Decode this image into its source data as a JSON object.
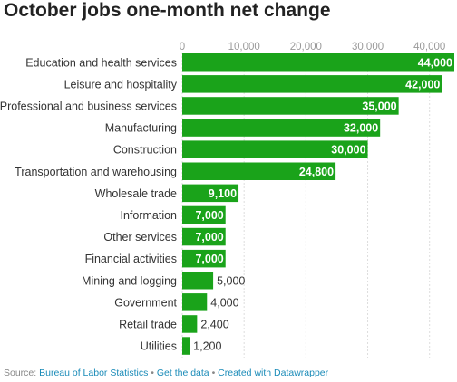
{
  "title": "October jobs one-month net change",
  "chart_data": {
    "type": "bar",
    "orientation": "horizontal",
    "categories": [
      "Education and health services",
      "Leisure and hospitality",
      "Professional and business services",
      "Manufacturing",
      "Construction",
      "Transportation and warehousing",
      "Wholesale trade",
      "Information",
      "Other services",
      "Financial activities",
      "Mining and logging",
      "Government",
      "Retail trade",
      "Utilities"
    ],
    "values": [
      44000,
      42000,
      35000,
      32000,
      30000,
      24800,
      9100,
      7000,
      7000,
      7000,
      5000,
      4000,
      2400,
      1200
    ],
    "value_labels": [
      "44,000",
      "42,000",
      "35,000",
      "32,000",
      "30,000",
      "24,800",
      "9,100",
      "7,000",
      "7,000",
      "7,000",
      "5,000",
      "4,000",
      "2,400",
      "1,200"
    ],
    "ticks": [
      0,
      10000,
      20000,
      30000,
      40000
    ],
    "tick_labels": [
      "0",
      "10,000",
      "20,000",
      "30,000",
      "40,000"
    ],
    "xlim": [
      0,
      44000
    ],
    "grid": true,
    "bar_color": "#1aa31a"
  },
  "footer": {
    "source_prefix": "Source: ",
    "source_link": "Bureau of Labor Statistics",
    "sep1": " • ",
    "data_link": "Get the data",
    "sep2": " • ",
    "created_link": "Created with Datawrapper"
  }
}
